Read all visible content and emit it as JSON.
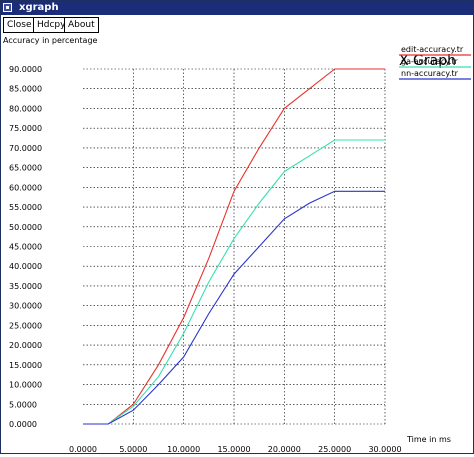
{
  "window": {
    "title": "xgraph"
  },
  "toolbar": {
    "close_label": "Close",
    "hdcpy_label": "Hdcpy",
    "about_label": "About"
  },
  "chart_data": {
    "type": "line",
    "title": "X Graph",
    "xlabel": "Time in ms",
    "ylabel": "Accuracy in percentage",
    "xlim": [
      0,
      30
    ],
    "ylim": [
      0,
      90
    ],
    "x_ticks": [
      "0.0000",
      "5.0000",
      "10.0000",
      "15.0000",
      "20.0000",
      "25.0000",
      "30.0000"
    ],
    "y_ticks": [
      "0.0000",
      "5.0000",
      "10.0000",
      "15.0000",
      "20.0000",
      "25.0000",
      "30.0000",
      "35.0000",
      "40.0000",
      "45.0000",
      "50.0000",
      "55.0000",
      "60.0000",
      "65.0000",
      "70.0000",
      "75.0000",
      "80.0000",
      "85.0000",
      "90.0000"
    ],
    "grid": true,
    "legend_position": "top-right",
    "series": [
      {
        "name": "edit-accuracy.tr",
        "color": "#e8322c",
        "points": [
          [
            0,
            0
          ],
          [
            2.5,
            0
          ],
          [
            5,
            5
          ],
          [
            7.5,
            15
          ],
          [
            10,
            27
          ],
          [
            12.5,
            42
          ],
          [
            15,
            59
          ],
          [
            17.5,
            70
          ],
          [
            20,
            80
          ],
          [
            22.5,
            85
          ],
          [
            25,
            90
          ],
          [
            30,
            90
          ]
        ]
      },
      {
        "name": "ga-accuracy.tr",
        "color": "#38e0b0",
        "points": [
          [
            0,
            0
          ],
          [
            2.5,
            0
          ],
          [
            5,
            4.5
          ],
          [
            7.5,
            12
          ],
          [
            10,
            23
          ],
          [
            12.5,
            36
          ],
          [
            15,
            47
          ],
          [
            17.5,
            56
          ],
          [
            20,
            64
          ],
          [
            22.5,
            68
          ],
          [
            25,
            72
          ],
          [
            30,
            72
          ]
        ]
      },
      {
        "name": "nn-accuracy.tr",
        "color": "#2a35cc",
        "points": [
          [
            0,
            0
          ],
          [
            2.5,
            0
          ],
          [
            5,
            3.5
          ],
          [
            7.5,
            10
          ],
          [
            10,
            17
          ],
          [
            12.5,
            28
          ],
          [
            15,
            38
          ],
          [
            17.5,
            45
          ],
          [
            20,
            52
          ],
          [
            22.5,
            56
          ],
          [
            25,
            59
          ],
          [
            30,
            59
          ]
        ]
      }
    ]
  }
}
